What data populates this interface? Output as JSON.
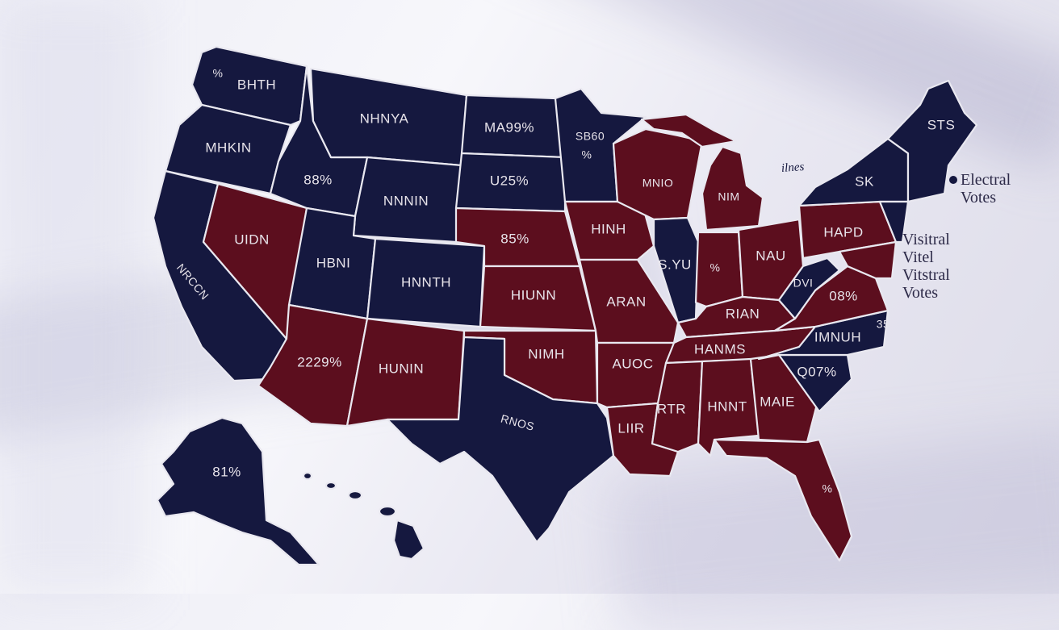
{
  "colors": {
    "democrat": "#15183f",
    "republican": "#5c0e1e",
    "background": "#eeeef6"
  },
  "states": [
    {
      "id": "wa",
      "label": "BHTH",
      "party": "democrat"
    },
    {
      "id": "wa-mark",
      "label": "%",
      "party": "democrat"
    },
    {
      "id": "or",
      "label": "MHKIN",
      "party": "democrat"
    },
    {
      "id": "ca",
      "label": "NRCCN",
      "party": "democrat"
    },
    {
      "id": "nv",
      "label": "UIDN",
      "party": "republican"
    },
    {
      "id": "id",
      "label": "88%",
      "party": "democrat"
    },
    {
      "id": "mt",
      "label": "NHNYA",
      "party": "democrat"
    },
    {
      "id": "wy",
      "label": "NNNIN",
      "party": "democrat"
    },
    {
      "id": "ut",
      "label": "HBNI",
      "party": "democrat"
    },
    {
      "id": "co",
      "label": "HNNTH",
      "party": "democrat"
    },
    {
      "id": "az",
      "label": "2229%",
      "party": "republican"
    },
    {
      "id": "nm",
      "label": "HUNIN",
      "party": "republican"
    },
    {
      "id": "nd",
      "label": "MA99%",
      "party": "democrat"
    },
    {
      "id": "sd",
      "label": "U25%",
      "party": "democrat"
    },
    {
      "id": "ne",
      "label": "85%",
      "party": "republican"
    },
    {
      "id": "ks",
      "label": "HIUNN",
      "party": "republican"
    },
    {
      "id": "ok",
      "label": "NIMH",
      "party": "republican"
    },
    {
      "id": "tx",
      "label": "RNOS",
      "party": "democrat"
    },
    {
      "id": "mn",
      "label": "SB60",
      "party": "democrat"
    },
    {
      "id": "mn-pct",
      "label": "%",
      "party": "democrat"
    },
    {
      "id": "ia",
      "label": "HINH",
      "party": "republican"
    },
    {
      "id": "mo",
      "label": "ARAN",
      "party": "republican"
    },
    {
      "id": "ar",
      "label": "AUOC",
      "party": "republican"
    },
    {
      "id": "la",
      "label": "LIIR",
      "party": "republican"
    },
    {
      "id": "wi",
      "label": "MNIO",
      "party": "republican"
    },
    {
      "id": "il",
      "label": "S.YU",
      "party": "democrat"
    },
    {
      "id": "mi",
      "label": "NIM",
      "party": "republican"
    },
    {
      "id": "in",
      "label": "%",
      "party": "republican"
    },
    {
      "id": "oh",
      "label": "NAU",
      "party": "republican"
    },
    {
      "id": "ky",
      "label": "RIAN",
      "party": "republican"
    },
    {
      "id": "tn",
      "label": "HANMS",
      "party": "republican"
    },
    {
      "id": "ms",
      "label": "RTR",
      "party": "republican"
    },
    {
      "id": "al",
      "label": "HNNT",
      "party": "republican"
    },
    {
      "id": "ga",
      "label": "MAIE",
      "party": "republican"
    },
    {
      "id": "fl",
      "label": "%",
      "party": "republican"
    },
    {
      "id": "sc",
      "label": "Q07%",
      "party": "democrat"
    },
    {
      "id": "nc",
      "label": "IMNUH",
      "party": "democrat"
    },
    {
      "id": "va",
      "label": "08%",
      "party": "republican"
    },
    {
      "id": "wv",
      "label": "DVI",
      "party": "democrat"
    },
    {
      "id": "pa",
      "label": "HAPD",
      "party": "republican"
    },
    {
      "id": "ny",
      "label": "SK",
      "party": "democrat"
    },
    {
      "id": "me",
      "label": "STS",
      "party": "democrat"
    },
    {
      "id": "nc-side",
      "label": "35",
      "party": "democrat"
    },
    {
      "id": "ak",
      "label": "81%",
      "party": "democrat"
    },
    {
      "id": "hi",
      "label": "",
      "party": "democrat"
    }
  ],
  "legend": {
    "electoral": [
      "Electral",
      "Votes"
    ],
    "visitral": [
      "Visitral",
      "Vitel",
      "Vitstral",
      "Votes"
    ]
  },
  "scribble": "ilnes"
}
